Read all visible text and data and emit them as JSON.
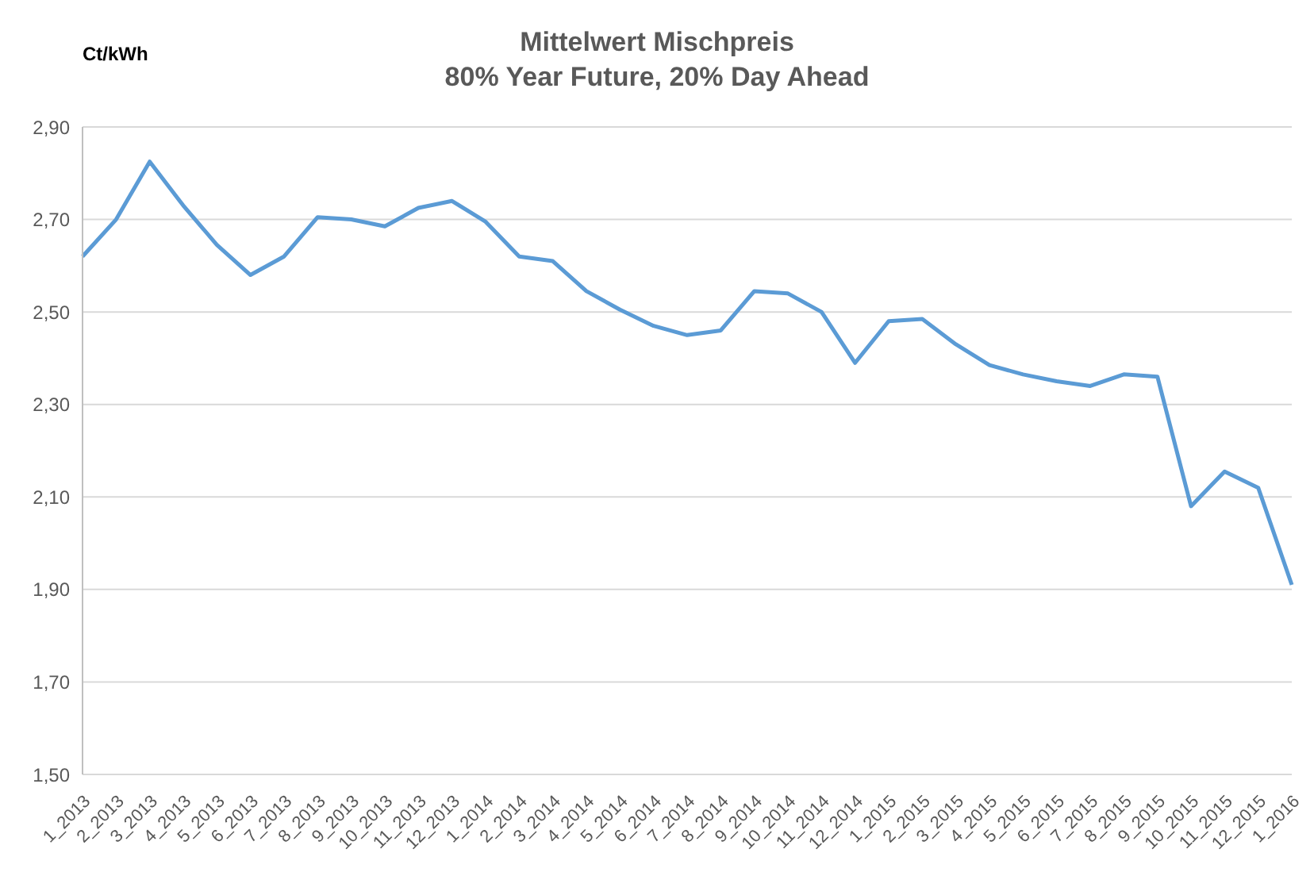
{
  "chart_data": {
    "type": "line",
    "title": "Mittelwert Mischpreis",
    "subtitle": "80% Year Future, 20% Day Ahead",
    "ylabel": "Ct/kWh",
    "categories": [
      "1_2013",
      "2_2013",
      "3_2013",
      "4_2013",
      "5_2013",
      "6_2013",
      "7_2013",
      "8_2013",
      "9_2013",
      "10_2013",
      "11_2013",
      "12_2013",
      "1_2014",
      "2_2014",
      "3_2014",
      "4_2014",
      "5_2014",
      "6_2014",
      "7_2014",
      "8_2014",
      "9_2014",
      "10_2014",
      "11_2014",
      "12_2014",
      "1_2015",
      "2_2015",
      "3_2015",
      "4_2015",
      "5_2015",
      "6_2015",
      "7_2015",
      "8_2015",
      "9_2015",
      "10_2015",
      "11_2015",
      "12_2015",
      "1_2016"
    ],
    "series": [
      {
        "color": "#5b9bd5",
        "values": [
          2.62,
          2.7,
          2.825,
          2.73,
          2.645,
          2.58,
          2.62,
          2.705,
          2.7,
          2.685,
          2.725,
          2.74,
          2.695,
          2.62,
          2.61,
          2.545,
          2.505,
          2.47,
          2.45,
          2.46,
          2.545,
          2.54,
          2.5,
          2.39,
          2.48,
          2.485,
          2.43,
          2.385,
          2.365,
          2.35,
          2.34,
          2.365,
          2.36,
          2.08,
          2.155,
          2.12,
          1.91
        ]
      }
    ],
    "ylim": [
      1.5,
      2.9
    ],
    "yticks": [
      {
        "value": 1.5,
        "label": "1,50"
      },
      {
        "value": 1.7,
        "label": "1,70"
      },
      {
        "value": 1.9,
        "label": "1,90"
      },
      {
        "value": 2.1,
        "label": "2,10"
      },
      {
        "value": 2.3,
        "label": "2,30"
      },
      {
        "value": 2.5,
        "label": "2,50"
      },
      {
        "value": 2.7,
        "label": "2,70"
      },
      {
        "value": 2.9,
        "label": "2,90"
      }
    ],
    "grid": "y",
    "legend": false,
    "marker": "none",
    "line_style": "solid"
  }
}
